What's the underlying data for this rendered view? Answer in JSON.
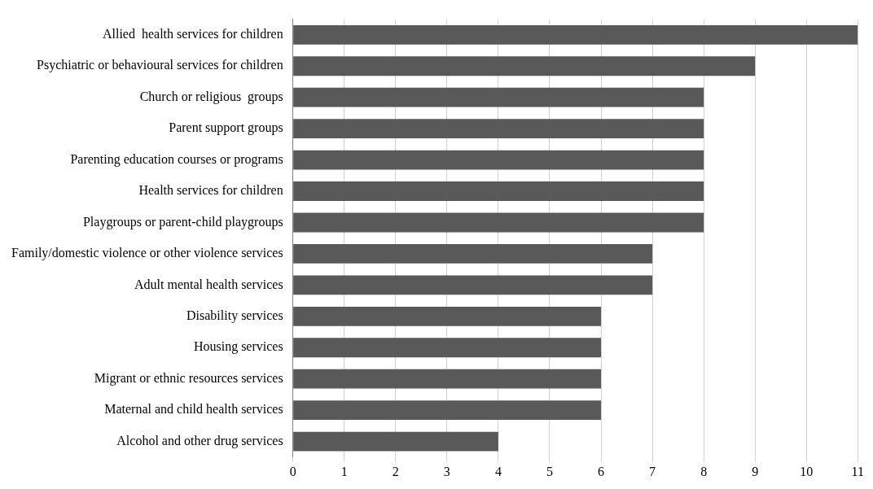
{
  "chart_data": {
    "type": "bar",
    "orientation": "horizontal",
    "categories": [
      "Allied  health services for children",
      "Psychiatric or behavioural services for children",
      "Church or religious  groups",
      "Parent support groups",
      "Parenting education courses or programs",
      "Health services for children",
      "Playgroups or parent-child playgroups",
      "Family/domestic violence or other violence services",
      "Adult mental health services",
      "Disability services",
      "Housing services",
      "Migrant or ethnic resources services",
      "Maternal and child health services",
      "Alcohol and other drug services"
    ],
    "values": [
      11,
      9,
      8,
      8,
      8,
      8,
      8,
      7,
      7,
      6,
      6,
      6,
      6,
      4
    ],
    "color": "#595959",
    "xlim": [
      0,
      11
    ],
    "xticks": [
      0,
      1,
      2,
      3,
      4,
      5,
      6,
      7,
      8,
      9,
      10,
      11
    ],
    "grid": "x",
    "legend": false
  }
}
